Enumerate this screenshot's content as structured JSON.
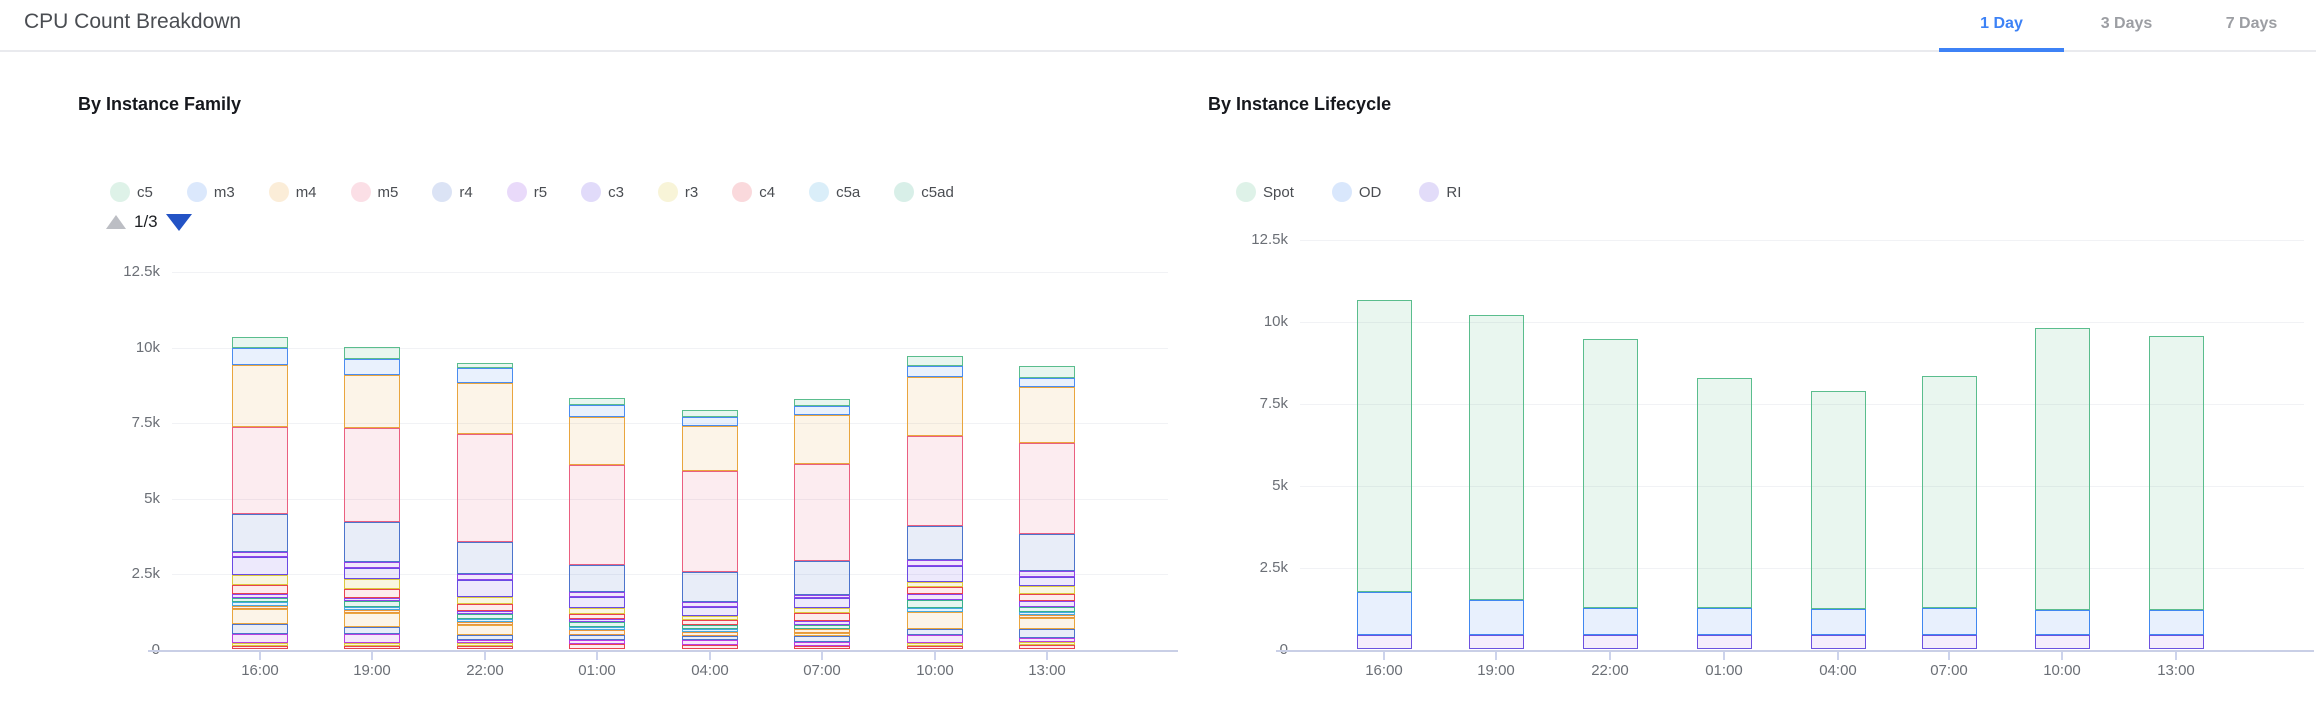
{
  "header": {
    "title": "CPU Count Breakdown",
    "tabs": [
      {
        "label": "1 Day",
        "active": true
      },
      {
        "label": "3 Days",
        "active": false
      },
      {
        "label": "7 Days",
        "active": false
      }
    ],
    "active_tab_color": "#3d82f6"
  },
  "charts": [
    {
      "title": "By Instance Family",
      "pager": {
        "label": "1/3"
      },
      "chart_data": {
        "type": "bar",
        "stacked": true,
        "note_stack_order": "series listed top-to-bottom of each bar",
        "categories": [
          "16:00",
          "19:00",
          "22:00",
          "01:00",
          "04:00",
          "07:00",
          "10:00",
          "13:00"
        ],
        "yticks": [
          "0",
          "2.5k",
          "5k",
          "7.5k",
          "10k",
          "12.5k"
        ],
        "ylim": [
          0,
          12500
        ],
        "legend_order": [
          "c5",
          "m3",
          "m4",
          "m5",
          "r4",
          "r5",
          "c3",
          "r3",
          "c4",
          "c5a",
          "c5ad"
        ],
        "series": [
          {
            "name": "c5",
            "border": "#5abd8d",
            "fill": "rgba(90,189,141,0.14)",
            "values": [
              360,
              400,
              165,
              230,
              230,
              230,
              330,
              400
            ]
          },
          {
            "name": "m3",
            "border": "#4a8cf0",
            "fill": "rgba(74,140,240,0.12)",
            "values": [
              590,
              530,
              500,
              400,
              300,
              300,
              360,
              300
            ]
          },
          {
            "name": "m4",
            "border": "#e9a53e",
            "fill": "rgba(233,165,62,0.12)",
            "values": [
              2050,
              1750,
              1680,
              1580,
              1490,
              1620,
              1950,
              1850
            ]
          },
          {
            "name": "m5",
            "border": "#ea5f80",
            "fill": "rgba(234,95,128,0.12)",
            "values": [
              2870,
              3100,
              3560,
              3300,
              3330,
              3200,
              3000,
              3000
            ]
          },
          {
            "name": "r4",
            "border": "#4d74cc",
            "fill": "rgba(77,116,204,0.13)",
            "values": [
              1250,
              1320,
              1060,
              890,
              990,
              1120,
              1120,
              1220
            ]
          },
          {
            "name": "r5",
            "border": "#8f44e8",
            "fill": "rgba(143,68,232,0.12)",
            "values": [
              170,
              200,
              200,
              165,
              165,
              100,
              200,
              200
            ]
          },
          {
            "name": "c3",
            "border": "#6a4ae4",
            "fill": "rgba(106,74,228,0.12)",
            "values": [
              590,
              360,
              560,
              360,
              300,
              330,
              530,
              300
            ]
          },
          {
            "name": "r3",
            "border": "#dcc83e",
            "fill": "rgba(220,200,62,0.16)",
            "values": [
              330,
              330,
              230,
              200,
              130,
              165,
              165,
              260
            ]
          },
          {
            "name": "c4",
            "border": "#e8434f",
            "fill": "rgba(232,67,79,0.10)",
            "values": [
              300,
              300,
              230,
              200,
              165,
              260,
              230,
              230
            ]
          },
          {
            "name": "",
            "border": "#8f44e8",
            "fill": "rgba(143,68,232,0.12)",
            "values": [
              130,
              100,
              100,
              70,
              0,
              130,
              200,
              200
            ]
          },
          {
            "name": "c5ad",
            "border": "#3ab08e",
            "fill": "rgba(58,176,142,0.13)",
            "values": [
              130,
              200,
              200,
              200,
              165,
              130,
              260,
              230
            ]
          },
          {
            "name": "c5a",
            "border": "#46a9e0",
            "fill": "rgba(70,169,224,0.13)",
            "values": [
              130,
              100,
              100,
              70,
              70,
              0,
              130,
              70
            ]
          },
          {
            "name": "",
            "border": "#e8973c",
            "fill": "rgba(232,151,60,0.13)",
            "values": [
              100,
              100,
              70,
              165,
              130,
              165,
              0,
              70
            ]
          },
          {
            "name": "",
            "border": "#e9a53e",
            "fill": "rgba(233,165,62,0.12)",
            "values": [
              500,
              460,
              330,
              0,
              0,
              70,
              560,
              360
            ]
          },
          {
            "name": "",
            "border": "#4d74cc",
            "fill": "rgba(77,116,204,0.13)",
            "values": [
              330,
              230,
              165,
              165,
              130,
              200,
              200,
              300
            ]
          },
          {
            "name": "",
            "border": "#b93fe0",
            "fill": "rgba(185,63,224,0.12)",
            "values": [
              360,
              360,
              165,
              130,
              165,
              165,
              260,
              165
            ]
          },
          {
            "name": "",
            "border": "#dcc83e",
            "fill": "rgba(220,200,62,0.16)",
            "values": [
              70,
              70,
              70,
              0,
              0,
              0,
              100,
              70
            ]
          },
          {
            "name": "",
            "border": "#e8434f",
            "fill": "rgba(232,67,79,0.10)",
            "values": [
              70,
              70,
              70,
              165,
              130,
              70,
              100,
              130
            ]
          }
        ]
      }
    },
    {
      "title": "By Instance Lifecycle",
      "chart_data": {
        "type": "bar",
        "stacked": true,
        "note_stack_order": "series listed top-to-bottom of each bar",
        "categories": [
          "16:00",
          "19:00",
          "22:00",
          "01:00",
          "04:00",
          "07:00",
          "10:00",
          "13:00"
        ],
        "yticks": [
          "0",
          "2.5k",
          "5k",
          "7.5k",
          "10k",
          "12.5k"
        ],
        "ylim": [
          0,
          12500
        ],
        "legend_order": [
          "Spot",
          "OD",
          "RI"
        ],
        "series": [
          {
            "name": "Spot",
            "border": "#5abd8d",
            "fill": "rgba(99,192,140,0.14)",
            "values": [
              8900,
              8700,
              8200,
              7000,
              6650,
              7050,
              8600,
              8350
            ]
          },
          {
            "name": "OD",
            "border": "#4087f0",
            "fill": "rgba(64,135,240,0.12)",
            "values": [
              1300,
              1050,
              830,
              830,
              800,
              830,
              780,
              780
            ]
          },
          {
            "name": "RI",
            "border": "#6c52e0",
            "fill": "rgba(176,108,230,0.12)",
            "values": [
              430,
              430,
              430,
              430,
              430,
              430,
              420,
              420
            ]
          }
        ]
      }
    }
  ]
}
